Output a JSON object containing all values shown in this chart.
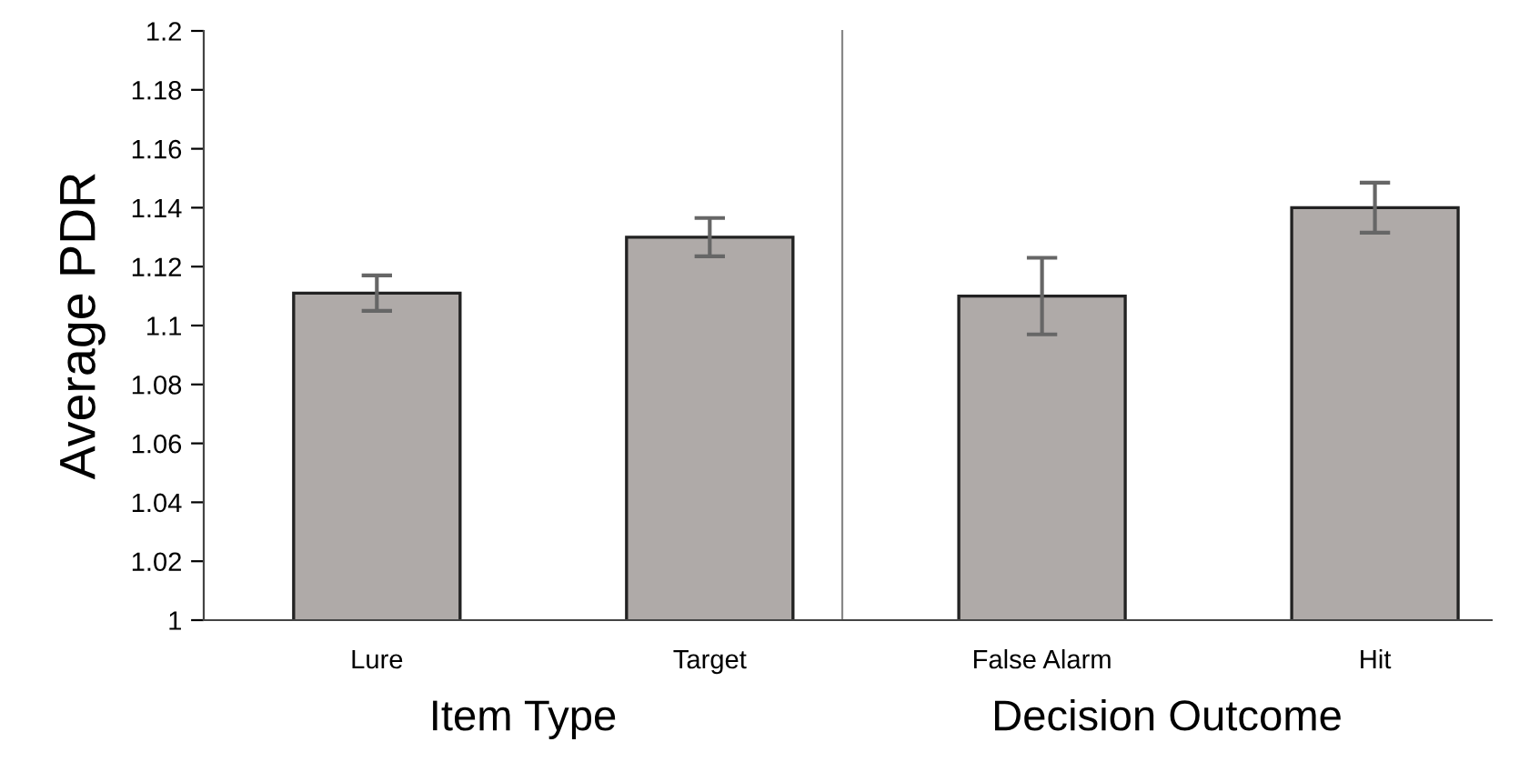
{
  "chart_data": [
    {
      "type": "bar",
      "ylabel": "Average PDR",
      "xlabel": "Item Type",
      "categories": [
        "Lure",
        "Target"
      ],
      "values": [
        1.111,
        1.13
      ],
      "errors": [
        0.006,
        0.0065
      ],
      "color": "#afaaa8",
      "ylim": [
        1,
        1.2
      ],
      "yticks": [
        1,
        1.02,
        1.04,
        1.06,
        1.08,
        1.1,
        1.12,
        1.14,
        1.16,
        1.18,
        1.2
      ],
      "grid": false,
      "legend": false
    },
    {
      "type": "bar",
      "xlabel": "Decision Outcome",
      "categories": [
        "False Alarm",
        "Hit"
      ],
      "values": [
        1.11,
        1.14
      ],
      "errors": [
        0.013,
        0.0085
      ],
      "color": "#afaaa8",
      "ylim": [
        1,
        1.2
      ],
      "yticks": [
        1,
        1.02,
        1.04,
        1.06,
        1.08,
        1.1,
        1.12,
        1.14,
        1.16,
        1.18,
        1.2
      ],
      "tick_labels": "x",
      "grid": false,
      "legend": false
    }
  ]
}
